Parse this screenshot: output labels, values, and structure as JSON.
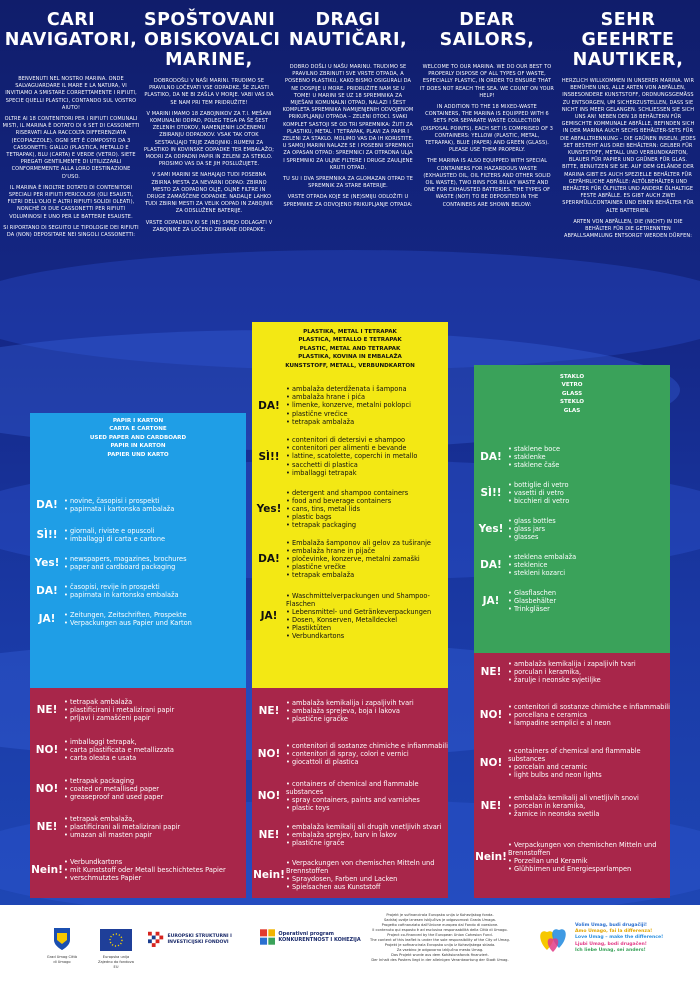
{
  "intro": [
    {
      "title": "CARI NAVIGATORI,",
      "paras": [
        "Benvenuti nel nostro marina. Onde salvaguardare il mare e la natura, vi invitiamo a smistare correttamente i rifiuti, specie quelli plastici, contando sul vostro aiuto!",
        "Oltre ai 18 contenitori per i rifiuti comunali misti, il marina è dotato di 6 set di cassonetti riservati alla raccolta differenziata (ecopiazzole). Ogni set è composto da 3 cassonetti: giallo (plastica, metallo e tetrapak), blu (carta) e verde (vetro). Siete pregati gentilmente di utilizzarli conformemente alla loro destinazione d'uso.",
        "Il marina è inoltre dotato di contenitori speciali per rifiuti pericolosi (oli esausti, filtri dell'olio e altri rifiuti solidi oleati), nonché di due cassonetti per rifiuti voluminosi e uno per le batterie esauste.",
        "Si riportano di seguito le tipologie dei rifiuti da (non) depositare nei singoli cassonetti:"
      ]
    },
    {
      "title": "SPOŠTOVANI OBISKOVALCI MARINE,",
      "paras": [
        "Dobrodošli v naši marini. Trudimo se pravilno ločevati vse odpadke, še zlasti plastiko, da ne bi zašla v morje. Vabi vas da se nam pri tem pridružite!",
        "V marini imamo 18 zabojnikov za t.i. mešani komunalni odpad, poleg tega pa še šest zelenih otokov, namenjenih ločenemu zbiranju odpadkov. Vsak tak otok sestavljajo trije zabojniki: rumeni za plastiko in kovinske odpadke ter embalažo; modri za odpadni papir in zeleni za steklo. Prosimo vas da se jih poslužujete.",
        "V sami marini se nahajajo tudi posebna zbirna mesta za nevarni odpad: zbirno mesto za odpadno olje, oljne filtre in druge zamaščene odpadke. Nadalje lahko tudi zbirni mesti za velik odpad in zabojnik za odslužene baterije.",
        "Vrste odpadkov ki se (ne) smejo odlagati v zabojnike za ločeno zbirane odpadke:"
      ]
    },
    {
      "title": "DRAGI NAUTIČARI,",
      "paras": [
        "Dobro došli u našu marinu. Trudimo se pravilno zbrinuti sve vrste otpada, a posebno plastiku, kako bismo osigurali da ne dospije u more. Pridružite nam se u tome! U marini se uz 18 spremnika za miješani komunalni otpad, nalazi i šest kompleta spremnika namijenjenih odvojenom prikupljanju otpada – zeleni otoci. Svaki komplet sastoji se od tri spremnika: žuti za plastiku, metal i tetrapak, plavi za papir i zeleni za staklo. Molimo vas da ih koristite. U samoj marini nalaze se i posebni spremnici za opasan otpad: spremnici za otpadna ulja i spremniki za uljne filtere i druge zauljene kruti otpad.",
        "Tu su i dva spremnika za glomazan otpad te spremnik za stare baterije.",
        "Vrste otpada koje se (ne)smiju odložiti u spremnike za odvojeno prikupljanje otpada:"
      ]
    },
    {
      "title": "DEAR SAILORS,",
      "paras": [
        "Welcome to our marina. We do our best to properly dispose of all types of waste, especially plastic, in order to ensure that it does not reach the sea. We count on your help!",
        "In addition to the 18 mixed-waste containers, the marina is equipped with 6 sets for separate waste collection (disposal points). Each set is comprised of 3 containers: yellow (plastic, metal, tetrapak), blue (paper) and green (glass). Please use them properly.",
        "The marina is also equipped with special containers for hazardous waste (exhausted oil, oil filters and other solid oil waste), two bins for bulky waste and one for exhausted batteries. The types of waste (not) to be deposited in the containers are shown below:"
      ]
    },
    {
      "title": "SEHR GEEHRTE NAUTIKER,",
      "paras": [
        "Herzlich willkommen in unserer Marina. Wir bemühen uns, alle Arten von Abfällen, insbesondere Kunststoff, ordnungsgemäß zu entsorgen, um sicherzustellen, dass sie nicht ins Meer gelangen. Schließen sie sich uns an! Neben den 18 Behältern für gemischte kommunale Abfälle, befinden sich in der Marina auch sechs Behälter-Sets für die Abfalltrennung – die grünen Inseln. Jedes Set besteht aus drei Behältern: gelber für Kunststoff, Metall und Verbundkarton, blauer für Papier und grüner für Glas. Bitte, benutzen Sie sie. Auf dem Gelände der Marina gibt es auch spezielle Behälter für gefährliche Abfälle: Altölbehälter und Behälter für Ölfilter und andere ölhaltige feste Abfälle. Es gibt auch zwei Sperrmüllcontainer und einen Behälter für alte Batterien.",
        "Arten von Abfällen, die (nicht) in die Behälter für die getrennten Abfallsammlung entsorgt werden dürfen:"
      ]
    }
  ],
  "paper": {
    "heading": [
      "PAPIR I KARTON",
      "CARTA E CARTONE",
      "USED PAPER AND CARDBOARD",
      "PAPIR IN KARTON",
      "PAPIER UND KARTO"
    ],
    "yes": [
      {
        "label": "DA!",
        "items": [
          "novine, časopisi i prospekti",
          "papirnata i kartonska ambalaža"
        ]
      },
      {
        "label": "SÌ!!",
        "items": [
          "giornali, riviste e opuscoli",
          "imballaggi di carta e cartone"
        ]
      },
      {
        "label": "Yes!",
        "items": [
          "newspapers, magazines, brochures",
          "paper and cardboard packaging"
        ]
      },
      {
        "label": "DA!",
        "items": [
          "časopisi, revije in prospekti",
          "papirnata in kartonska embalaža"
        ]
      },
      {
        "label": "JA!",
        "items": [
          "Zeitungen, Zeitschriften, Prospekte",
          "Verpackungen aus Papier und Karton"
        ]
      }
    ],
    "no": [
      {
        "label": "NE!",
        "items": [
          "tetrapak ambalaža",
          "plastificirani i metalizirani papir",
          "prljavi i zamašćeni papir"
        ]
      },
      {
        "label": "NO!",
        "items": [
          "imballaggi tetrapak,",
          "carta plastificata e metallizzata",
          "carta oleata e usata"
        ]
      },
      {
        "label": "NO!",
        "items": [
          "tetrapak packaging",
          "coated or metallised paper",
          "greaseproof and used paper"
        ]
      },
      {
        "label": "NE!",
        "items": [
          "tetrapak embalaža,",
          "plastificirani ali metalizirani papir",
          "umazan ali masten papir"
        ]
      },
      {
        "label": "Nein!",
        "items": [
          "Verbundkartons",
          "mit Kunststoff oder Metall beschichtetes Papier",
          "verschmutztes Papier"
        ]
      }
    ]
  },
  "plastic": {
    "heading": [
      "PLASTIKA, METAL I TETRAPAK",
      "PLASTICA, METALLO E TETRAPAK",
      "PLASTIC, METAL AND TETRAPAK",
      "PLASTIKA, KOVINA IN EMBALAŽA",
      "KUNSTSTOFF, METALL, VERBUNDKARTON"
    ],
    "yes": [
      {
        "label": "DA!",
        "items": [
          "ambalaža deterdženata i šampona",
          "ambalaža hrane i pića",
          "limenke, konzerve, metalni poklopci",
          "plastične vrećice",
          "tetrapak ambalaža"
        ]
      },
      {
        "label": "SÌ!!",
        "items": [
          "contenitori di detersivi e shampoo",
          "contenitori per alimenti e bevande",
          "lattine, scatolette, coperchi in metallo",
          "sacchetti di plastica",
          "imballaggi tetrapak"
        ]
      },
      {
        "label": "Yes!",
        "items": [
          "detergent and shampoo containers",
          "food and beverage containers",
          "cans, tins, metal lids",
          "plastic bags",
          "tetrapak packaging"
        ]
      },
      {
        "label": "DA!",
        "items": [
          "Embalaža šamponov ali gelov za tuširanje",
          "embalaža hrane in pijače",
          "pločevinke, konzerve, metalni zamaški",
          "plastične vrečke",
          "tetrapak embalaža"
        ]
      },
      {
        "label": "JA!",
        "items": [
          "Waschmittelverpackungen und Shampoo-Flaschen",
          "Lebensmittel- und Getränkeverpackungen",
          "Dosen, Konserven, Metalldeckel",
          "Plastiktüten",
          "Verbundkartons"
        ]
      }
    ],
    "no": [
      {
        "label": "NE!",
        "items": [
          "ambalaža kemikalija i zapaljivih tvari",
          "ambalaža sprejeva, boja i lakova",
          "plastične igračke"
        ]
      },
      {
        "label": "NO!",
        "items": [
          "contenitori di sostanze chimiche e infiammabili",
          "contenitori di spray, colori e vernici",
          "giocattoli di plastica"
        ]
      },
      {
        "label": "NO!",
        "items": [
          "containers of chemical and flammable substances",
          "spray containers, paints and varnishes",
          "plastic toys"
        ]
      },
      {
        "label": "NE!",
        "items": [
          "embalaža kemikalij ali drugih vnetljivih stvari",
          "embalaža sprejev, barv in lakov",
          "plastične igrače"
        ]
      },
      {
        "label": "Nein!",
        "items": [
          "Verpackungen von chemischen Mitteln und Brennstoffen",
          "Spraydosen, Farben und Lacken",
          "Spielsachen aus Kunststoff"
        ]
      }
    ]
  },
  "glass": {
    "heading": [
      "STAKLO",
      "VETRO",
      "GLASS",
      "STEKLO",
      "GLAS"
    ],
    "yes": [
      {
        "label": "DA!",
        "items": [
          "staklene boce",
          "staklenke",
          "staklene čaše"
        ]
      },
      {
        "label": "SÌ!!",
        "items": [
          "bottiglie di vetro",
          "vasetti di vetro",
          "bicchieri di vetro"
        ]
      },
      {
        "label": "Yes!",
        "items": [
          "glass bottles",
          "glass jars",
          "glasses"
        ]
      },
      {
        "label": "DA!",
        "items": [
          "steklena embalaža",
          "steklenice",
          "stekleni kozarci"
        ]
      },
      {
        "label": "JA!",
        "items": [
          "Glasflaschen",
          "Glasbehälter",
          "Trinkgläser"
        ]
      }
    ],
    "no": [
      {
        "label": "NE!",
        "items": [
          "ambalaža kemikalija i zapaljivih tvari",
          "porculan i keramika,",
          "žarulje i neonske svjetiljke"
        ]
      },
      {
        "label": "NO!",
        "items": [
          "contenitori di sostanze chimiche e infiammabili",
          "porcellana e ceramica",
          "lampadine semplici e al neon"
        ]
      },
      {
        "label": "NO!",
        "items": [
          "containers of chemical and flammable substances",
          "porcelain and ceramic",
          "light bulbs and neon lights"
        ]
      },
      {
        "label": "NE!",
        "items": [
          "embalaža kemikalij ali vnetljivih snovi",
          "porcelan in keramika,",
          "žarnice in neonska svetila"
        ]
      },
      {
        "label": "Nein!",
        "items": [
          "Verpackungen von chemischen Mitteln und Brennstoffen",
          "Porzellan und Keramik",
          "Glühbirnen und Energiesparlampen"
        ]
      }
    ]
  },
  "footer": {
    "umag": "Grad Umag Città di Umago",
    "eu": "Europska unija Zajedno do fondova EU",
    "esif": "EUROPSKI STRUKTURNI I INVESTICIJSKI FONDOVI",
    "opk": "Operativni program KONKURENTNOST I KOHEZIJA",
    "center": [
      "Projekt je sufinancirala Europska unija iz Kohezijskog fonda.",
      "Sadržaj ovdje iznesen isključiva je odgovornost Grada Umaga.",
      "Progetto cofinanziato dall'Unione europea dal Fondo di coesione.",
      "Il contenuto qui esposto è ad esclusiva responsabilità della Città di Umago.",
      "Project co-financed by the European Union Cohesion Fund.",
      "The content of this leaflet is under the sole responsibility of the City of Umag.",
      "Projekt je sofinancirala Evropska unija iz Kohezijskega sklada.",
      "Za vsebino je odgovorno izključno mesto Umag.",
      "Das Projekt wurde aus dem Kohäsionsfonds finanziert.",
      "Der Inhalt des Posters liegt in der alleinigen Verantwortung der Stadt Umag."
    ],
    "slogan": [
      "Volim Umag, budi drugačiji!",
      "Amo Umago, fai la differenza!",
      "Love Umag – make the difference!",
      "Ljubi Umag, bodi drugačen!",
      "Ich liebe Umag, sei anders!"
    ]
  }
}
